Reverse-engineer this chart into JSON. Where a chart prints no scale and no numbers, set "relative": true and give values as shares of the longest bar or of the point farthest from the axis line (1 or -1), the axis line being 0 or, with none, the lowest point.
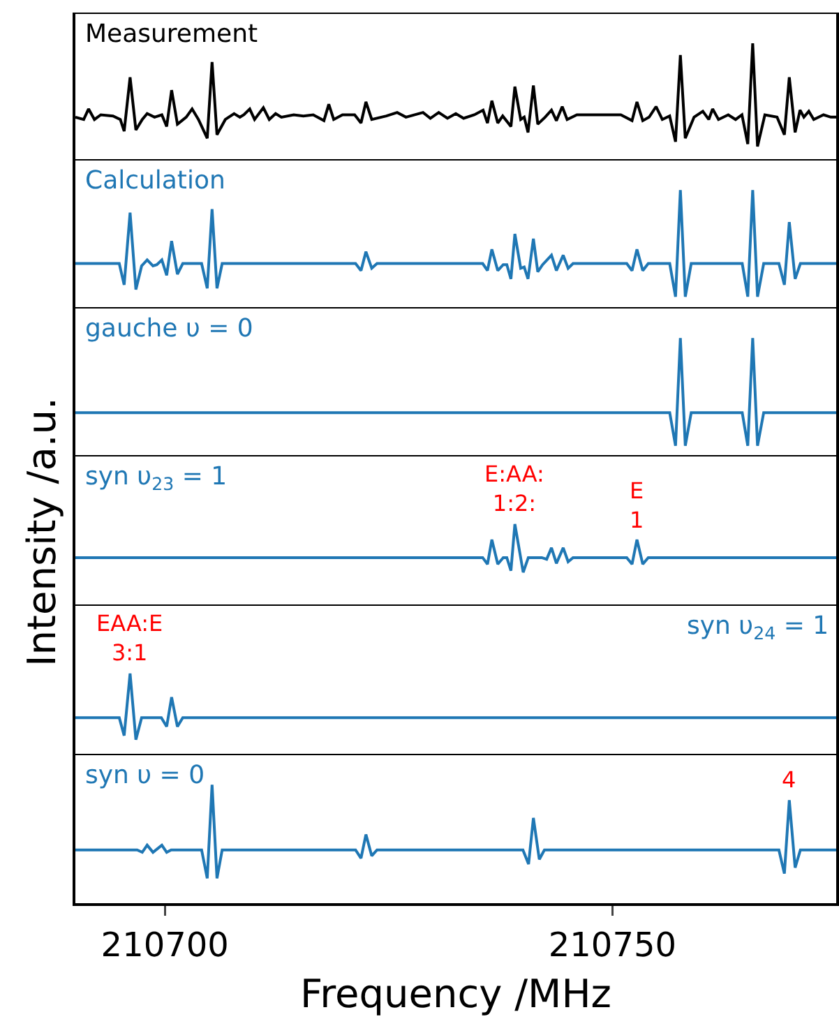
{
  "chart_data": [
    {
      "type": "line",
      "title": "Measurement",
      "relative": true,
      "xlim": [
        210690,
        210775
      ],
      "tick_labels": false,
      "series": [
        {
          "color": "#000000",
          "x": [
            210690,
            210690.93,
            210691.47,
            210692.13,
            210692.84,
            210694.2,
            210695.02,
            210695.45,
            210696.11,
            210696.76,
            210697.47,
            210698.02,
            210698.84,
            210699.66,
            210700.2,
            210700.75,
            210701.4,
            210702.38,
            210703.04,
            210703.75,
            210704.73,
            210705.27,
            210705.82,
            210706.75,
            210707.73,
            210708.38,
            210708.82,
            210709.48,
            210710.02,
            210711,
            210711.66,
            210712.37,
            210713.02,
            210714.39,
            210715.48,
            210716.57,
            210717.77,
            210718.31,
            210718.86,
            210719.84,
            210721.2,
            210721.91,
            210722.46,
            210723.11,
            210724.75,
            210725.95,
            210726.93,
            210728.84,
            210729.66,
            210730.59,
            210731.57,
            210732.5,
            210733.37,
            210734.57,
            210735.55,
            210736.04,
            210736.53,
            210737.19,
            210737.74,
            210738.66,
            210739.1,
            210739.75,
            210740.14,
            210740.57,
            210741.17,
            210741.66,
            210742.48,
            210743.19,
            210743.74,
            210744.39,
            210744.94,
            210746.03,
            210747.66,
            210750.94,
            210752.19,
            210752.74,
            210753.39,
            210754.1,
            210754.87,
            210755.57,
            210756.39,
            210757.05,
            210757.59,
            210758.14,
            210759.12,
            210760.1,
            210760.76,
            210761.19,
            210761.85,
            210762.94,
            210763.76,
            210764.47,
            210765.12,
            210765.67,
            210766.21,
            210767.03,
            210768.39,
            210769.21,
            210769.76,
            210770.41,
            210770.96,
            210771.39,
            210771.94,
            210772.49,
            210773.58,
            210774.4,
            210775
          ],
          "values": [
            0.37,
            0.35,
            0.44,
            0.35,
            0.39,
            0.38,
            0.35,
            0.25,
            0.71,
            0.26,
            0.35,
            0.4,
            0.37,
            0.39,
            0.29,
            0.6,
            0.31,
            0.37,
            0.44,
            0.35,
            0.19,
            0.84,
            0.22,
            0.35,
            0.4,
            0.37,
            0.39,
            0.44,
            0.35,
            0.45,
            0.35,
            0.4,
            0.37,
            0.39,
            0.38,
            0.39,
            0.34,
            0.48,
            0.35,
            0.39,
            0.39,
            0.32,
            0.5,
            0.35,
            0.38,
            0.41,
            0.37,
            0.41,
            0.36,
            0.41,
            0.36,
            0.4,
            0.36,
            0.39,
            0.43,
            0.32,
            0.51,
            0.32,
            0.38,
            0.29,
            0.63,
            0.35,
            0.37,
            0.24,
            0.64,
            0.31,
            0.37,
            0.43,
            0.34,
            0.46,
            0.35,
            0.39,
            0.39,
            0.39,
            0.34,
            0.5,
            0.34,
            0.37,
            0.46,
            0.35,
            0.38,
            0.16,
            0.9,
            0.19,
            0.37,
            0.42,
            0.35,
            0.44,
            0.35,
            0.39,
            0.35,
            0.39,
            0.14,
            1,
            0.12,
            0.39,
            0.37,
            0.22,
            0.71,
            0.24,
            0.43,
            0.37,
            0.42,
            0.35,
            0.39,
            0.37,
            0.37
          ]
        }
      ]
    },
    {
      "type": "line",
      "title": "Calculation",
      "relative": true,
      "xlim": [
        210690,
        210775
      ],
      "tick_labels": false,
      "series": [
        {
          "color": "#1f77b4",
          "x": [
            210690,
            210694.9,
            210695.45,
            210696.11,
            210696.76,
            210697.4,
            210698.02,
            210698.67,
            210699.1,
            210699.66,
            210700.2,
            210700.75,
            210701.4,
            210702,
            210704.1,
            210704.73,
            210705.27,
            210705.82,
            210706.4,
            210721.3,
            210721.91,
            210722.46,
            210723.11,
            210723.7,
            210735.5,
            210736.04,
            210736.53,
            210737.19,
            210737.8,
            210738.2,
            210738.66,
            210739.1,
            210739.75,
            210740.14,
            210740.57,
            210741.17,
            210741.66,
            210742.2,
            210743.19,
            210743.74,
            210744.5,
            210745.05,
            210745.6,
            210751.6,
            210752.19,
            210752.74,
            210753.39,
            210754,
            210756.4,
            210757.05,
            210757.59,
            210758.14,
            210758.8,
            210764.5,
            210765.12,
            210765.67,
            210766.21,
            210766.9,
            210768.6,
            210769.21,
            210769.76,
            210770.41,
            210771,
            210775
          ],
          "values": [
            0.38,
            0.38,
            0.2,
            0.81,
            0.16,
            0.36,
            0.41,
            0.36,
            0.37,
            0.41,
            0.28,
            0.57,
            0.29,
            0.38,
            0.38,
            0.17,
            0.84,
            0.17,
            0.38,
            0.38,
            0.32,
            0.48,
            0.34,
            0.38,
            0.38,
            0.32,
            0.5,
            0.32,
            0.37,
            0.37,
            0.25,
            0.63,
            0.34,
            0.35,
            0.25,
            0.59,
            0.31,
            0.37,
            0.45,
            0.32,
            0.45,
            0.34,
            0.38,
            0.38,
            0.32,
            0.5,
            0.32,
            0.38,
            0.38,
            0.1,
            1,
            0.1,
            0.38,
            0.38,
            0.1,
            1,
            0.1,
            0.38,
            0.38,
            0.2,
            0.73,
            0.25,
            0.38,
            0.38
          ]
        }
      ]
    },
    {
      "type": "line",
      "title": "gauche υ = 0",
      "relative": true,
      "xlim": [
        210690,
        210775
      ],
      "tick_labels": false,
      "series": [
        {
          "color": "#1f77b4",
          "x": [
            210690,
            210756.4,
            210757.05,
            210757.59,
            210758.14,
            210758.8,
            210764.5,
            210765.12,
            210765.67,
            210766.21,
            210766.9,
            210775
          ],
          "values": [
            0.37,
            0.37,
            0.09,
            1,
            0.09,
            0.37,
            0.37,
            0.09,
            1,
            0.09,
            0.37,
            0.37
          ]
        }
      ]
    },
    {
      "type": "line",
      "title": "syn υ$_{23}$ = 1",
      "ylabel": "Intensity /a.u.",
      "relative": true,
      "xlim": [
        210690,
        210775
      ],
      "tick_labels": false,
      "annotations": [
        {
          "text": "E:AA:\n1:2:",
          "x": 210739.1,
          "y": 1
        },
        {
          "text": "E\n1",
          "x": 210752.74,
          "y": 0.81
        }
      ],
      "series": [
        {
          "color": "#1f77b4",
          "x": [
            210690,
            210735.5,
            210736.04,
            210736.53,
            210737.19,
            210737.8,
            210738.2,
            210738.66,
            210739.1,
            210740.03,
            210740.6,
            210742.1,
            210742.65,
            210743.19,
            210743.74,
            210744.5,
            210745.05,
            210745.6,
            210751.6,
            210752.19,
            210752.74,
            210753.39,
            210754,
            210775
          ],
          "values": [
            0.59,
            0.59,
            0.51,
            0.81,
            0.51,
            0.59,
            0.59,
            0.43,
            1,
            0.41,
            0.59,
            0.59,
            0.57,
            0.71,
            0.52,
            0.71,
            0.54,
            0.59,
            0.59,
            0.51,
            0.81,
            0.51,
            0.59,
            0.59
          ]
        }
      ]
    },
    {
      "type": "line",
      "title": "syn υ$_{24}$ = 1",
      "relative": true,
      "xlim": [
        210690,
        210775
      ],
      "tick_labels": false,
      "annotations": [
        {
          "text": "EAA:E\n3:1",
          "x": 210696.11,
          "y": 1
        }
      ],
      "series": [
        {
          "color": "#1f77b4",
          "x": [
            210690,
            210694.9,
            210695.45,
            210696.11,
            210696.76,
            210697.4,
            210699.6,
            210700.2,
            210700.75,
            210701.4,
            210702,
            210775
          ],
          "values": [
            0.46,
            0.46,
            0.24,
            1,
            0.19,
            0.46,
            0.46,
            0.35,
            0.71,
            0.35,
            0.46,
            0.46
          ]
        }
      ]
    },
    {
      "type": "line",
      "title": "syn υ = 0",
      "xlabel": "Frequency /MHz",
      "relative": true,
      "xlim": [
        210690,
        210775
      ],
      "xticks": [
        210700,
        210750
      ],
      "tick_labels": "x",
      "annotations": [
        {
          "text": "4",
          "x": 210769.76,
          "y": 0.87
        }
      ],
      "series": [
        {
          "color": "#1f77b4",
          "x": [
            210690,
            210696.9,
            210697.47,
            210698.02,
            210698.67,
            210699.66,
            210700.2,
            210700.7,
            210704.1,
            210704.73,
            210705.27,
            210705.82,
            210706.4,
            210721.3,
            210721.91,
            210722.46,
            210723.11,
            210723.7,
            210740,
            210740.63,
            210741.17,
            210741.83,
            210742.4,
            210768.6,
            210769.21,
            210769.76,
            210770.41,
            210771,
            210775
          ],
          "values": [
            0.45,
            0.45,
            0.43,
            0.49,
            0.43,
            0.49,
            0.43,
            0.45,
            0.45,
            0.21,
            1,
            0.21,
            0.45,
            0.45,
            0.38,
            0.58,
            0.4,
            0.45,
            0.45,
            0.33,
            0.72,
            0.37,
            0.45,
            0.45,
            0.25,
            0.87,
            0.3,
            0.45,
            0.45
          ]
        }
      ]
    }
  ]
}
